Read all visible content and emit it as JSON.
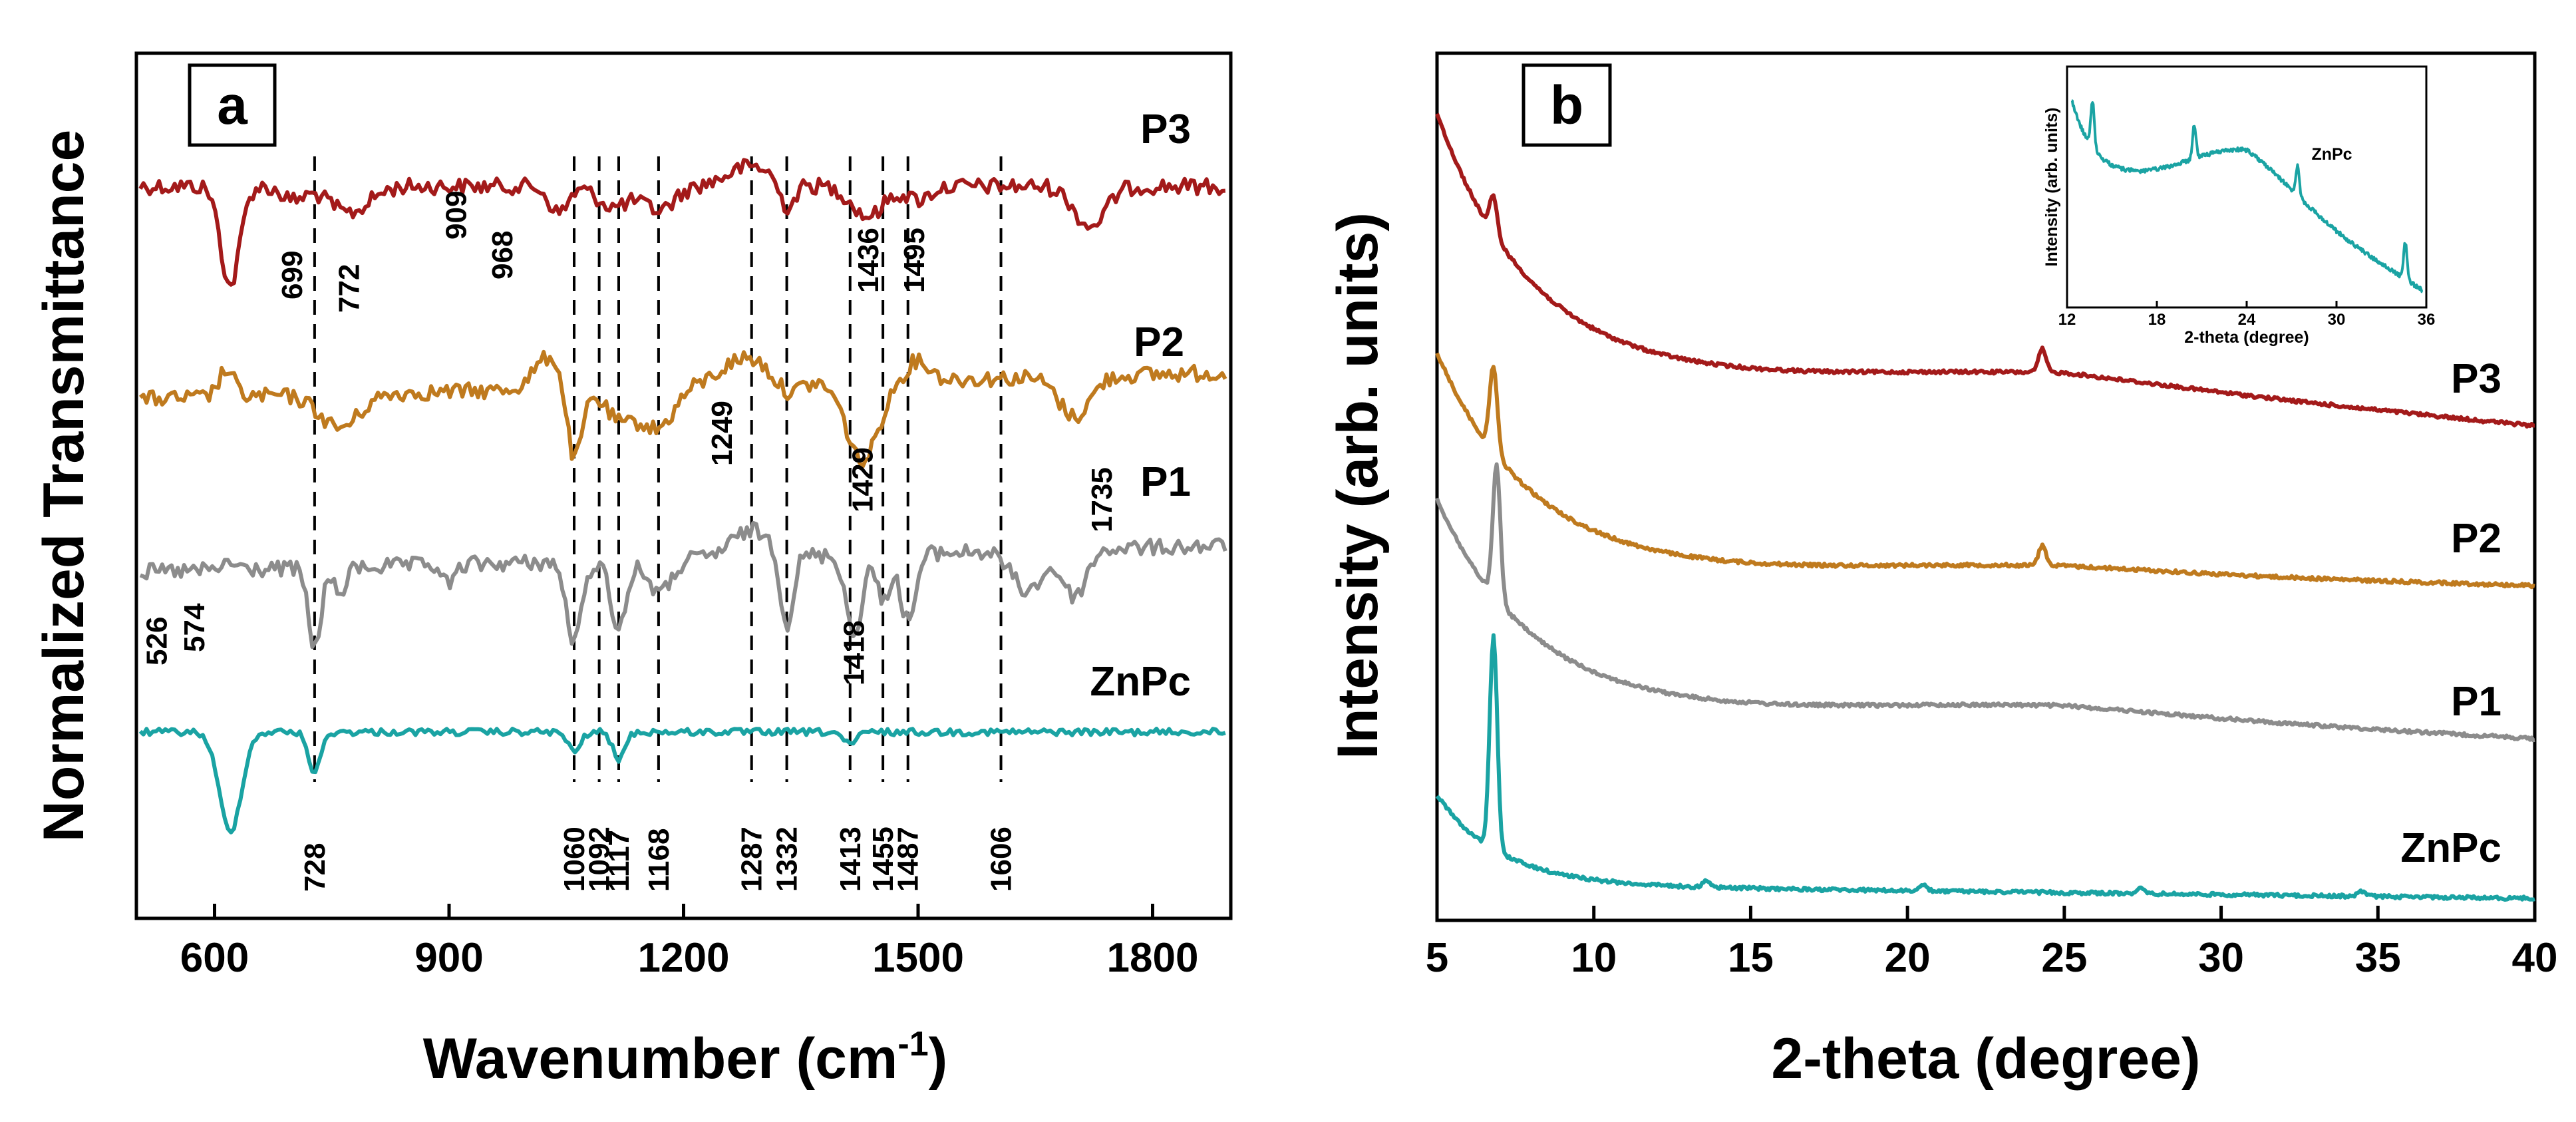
{
  "chart_data": [
    {
      "type": "line",
      "panel": "a",
      "xlabel_main": "Wavenumber (cm",
      "xlabel_sup": "-1",
      "xlabel_end": ")",
      "ylabel": "Normalized Transmittance",
      "xlim": [
        500,
        1900
      ],
      "x_ticks": [
        600,
        900,
        1200,
        1500,
        1800
      ],
      "peak_lines": [
        728,
        1060,
        1092,
        1117,
        1168,
        1287,
        1332,
        1413,
        1455,
        1487,
        1606
      ],
      "bottom_labels": [
        "728",
        "1060",
        "1092",
        "1117",
        "1168",
        "1287",
        "1332",
        "1413",
        "1455",
        "1487",
        "1606"
      ],
      "bottom_label_positions": [
        728,
        1060,
        1092,
        1117,
        1168,
        1287,
        1332,
        1413,
        1455,
        1487,
        1606
      ],
      "series": [
        {
          "name": "P3",
          "color": "#A31A1A",
          "annotations": [
            {
              "text": "699",
              "x": 699
            },
            {
              "text": "772",
              "x": 772
            },
            {
              "text": "909",
              "x": 909
            },
            {
              "text": "968",
              "x": 968
            },
            {
              "text": "1436",
              "x": 1436
            },
            {
              "text": "1495",
              "x": 1495
            }
          ]
        },
        {
          "name": "P2",
          "color": "#BF7A1E",
          "annotations": [
            {
              "text": "1249",
              "x": 1249
            },
            {
              "text": "1429",
              "x": 1429
            },
            {
              "text": "1735",
              "x": 1735
            }
          ]
        },
        {
          "name": "P1",
          "color": "#8C8C8C",
          "annotations": [
            {
              "text": "526",
              "x": 526
            },
            {
              "text": "574",
              "x": 574
            },
            {
              "text": "1418",
              "x": 1418
            }
          ]
        },
        {
          "name": "ZnPc",
          "color": "#1AA3A3",
          "annotations": []
        }
      ]
    },
    {
      "type": "line",
      "panel": "b",
      "xlabel": "2-theta  (degree)",
      "ylabel": "Intensity  (arb. units)",
      "xlim": [
        5,
        40
      ],
      "x_ticks": [
        5,
        10,
        15,
        20,
        25,
        30,
        35,
        40
      ],
      "series": [
        {
          "name": "P3",
          "color": "#A31A1A",
          "peaks": [
            6.8,
            24.3
          ]
        },
        {
          "name": "P2",
          "color": "#BF7A1E",
          "peaks": [
            6.8,
            24.3
          ]
        },
        {
          "name": "P1",
          "color": "#8C8C8C",
          "peaks": [
            6.9
          ]
        },
        {
          "name": "ZnPc",
          "color": "#1AA3A3",
          "peaks": [
            6.8,
            13.6,
            20.5,
            27.4,
            34.5
          ]
        }
      ],
      "inset": {
        "xlabel": "2-theta  (degree)",
        "ylabel": "Intensity  (arb. units)",
        "label": "ZnPc",
        "xlim": [
          12,
          36
        ],
        "x_ticks": [
          12,
          18,
          24,
          30,
          36
        ],
        "color": "#1AA3A3",
        "peaks": [
          13.7,
          20.5,
          27.4,
          34.6
        ]
      }
    }
  ]
}
